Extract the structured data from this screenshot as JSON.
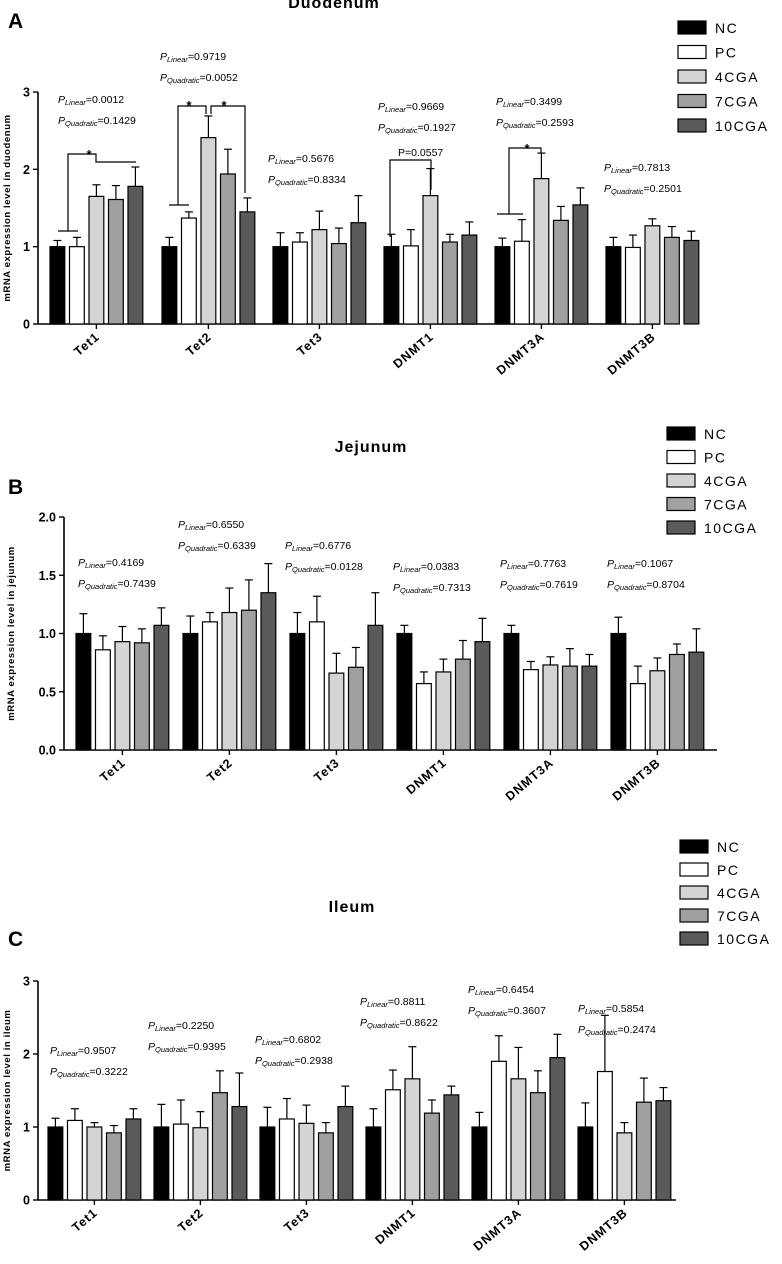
{
  "legend": {
    "groups": [
      "NC",
      "PC",
      "4CGA",
      "7CGA",
      "10CGA"
    ],
    "colors": [
      "#000000",
      "#ffffff",
      "#d4d4d4",
      "#a0a0a0",
      "#5a5a5a"
    ]
  },
  "p_labels": {
    "linear_sub": "Linear",
    "quadratic_sub": "Quadratic",
    "p": "P"
  },
  "chart_data": [
    {
      "type": "bar",
      "panel": "A",
      "title": "Duodenum",
      "ylabel": "mRNA expression level in duodenum",
      "ylim": [
        0,
        3
      ],
      "yticks": [
        "0",
        "1",
        "2",
        "3"
      ],
      "categories": [
        "Tet1",
        "Tet2",
        "Tet3",
        "DNMT1",
        "DNMT3A",
        "DNMT3B"
      ],
      "series": [
        {
          "name": "NC",
          "values": [
            1.0,
            1.0,
            1.0,
            1.0,
            1.0,
            1.0
          ],
          "errors": [
            0.08,
            0.12,
            0.18,
            0.16,
            0.11,
            0.12
          ]
        },
        {
          "name": "PC",
          "values": [
            1.0,
            1.37,
            1.06,
            1.01,
            1.07,
            0.99
          ],
          "errors": [
            0.12,
            0.08,
            0.12,
            0.21,
            0.28,
            0.16
          ]
        },
        {
          "name": "4CGA",
          "values": [
            1.65,
            2.41,
            1.22,
            1.66,
            1.88,
            1.27
          ],
          "errors": [
            0.15,
            0.28,
            0.24,
            0.35,
            0.33,
            0.09
          ]
        },
        {
          "name": "7CGA",
          "values": [
            1.61,
            1.94,
            1.04,
            1.06,
            1.34,
            1.12
          ],
          "errors": [
            0.18,
            0.32,
            0.2,
            0.1,
            0.18,
            0.14
          ]
        },
        {
          "name": "10CGA",
          "values": [
            1.78,
            1.45,
            1.31,
            1.15,
            1.54,
            1.08
          ],
          "errors": [
            0.25,
            0.18,
            0.35,
            0.17,
            0.22,
            0.12
          ]
        }
      ],
      "stats": [
        {
          "linear": "=0.0012",
          "quadratic": "=0.1429"
        },
        {
          "linear": "=0.9719",
          "quadratic": "=0.0052"
        },
        {
          "linear": "=0.5676",
          "quadratic": "=0.8334"
        },
        {
          "linear": "=0.9669",
          "quadratic": "=0.1927"
        },
        {
          "linear": "=0.3499",
          "quadratic": "=0.2593"
        },
        {
          "linear": "=0.7813",
          "quadratic": "=0.2501"
        }
      ],
      "annotations": [
        "*",
        "*",
        "*",
        "P=0.0557",
        "*"
      ]
    },
    {
      "type": "bar",
      "panel": "B",
      "title": "Jejunum",
      "ylabel": "mRNA expression level in jejunum",
      "ylim": [
        0,
        2
      ],
      "yticks": [
        "0.0",
        "0.5",
        "1.0",
        "1.5",
        "2.0"
      ],
      "categories": [
        "Tet1",
        "Tet2",
        "Tet3",
        "DNMT1",
        "DNMT3A",
        "DNMT3B"
      ],
      "series": [
        {
          "name": "NC",
          "values": [
            1.0,
            1.0,
            1.0,
            1.0,
            1.0,
            1.0
          ],
          "errors": [
            0.17,
            0.15,
            0.18,
            0.07,
            0.07,
            0.14
          ]
        },
        {
          "name": "PC",
          "values": [
            0.86,
            1.1,
            1.1,
            0.57,
            0.69,
            0.57
          ],
          "errors": [
            0.12,
            0.08,
            0.22,
            0.1,
            0.07,
            0.15
          ]
        },
        {
          "name": "4CGA",
          "values": [
            0.93,
            1.18,
            0.66,
            0.67,
            0.73,
            0.68
          ],
          "errors": [
            0.13,
            0.21,
            0.17,
            0.11,
            0.07,
            0.11
          ]
        },
        {
          "name": "7CGA",
          "values": [
            0.92,
            1.2,
            0.71,
            0.78,
            0.72,
            0.82
          ],
          "errors": [
            0.12,
            0.26,
            0.17,
            0.16,
            0.15,
            0.09
          ]
        },
        {
          "name": "10CGA",
          "values": [
            1.07,
            1.35,
            1.07,
            0.93,
            0.72,
            0.84
          ],
          "errors": [
            0.15,
            0.25,
            0.28,
            0.2,
            0.1,
            0.2
          ]
        }
      ],
      "stats": [
        {
          "linear": "=0.4169",
          "quadratic": "=0.7439"
        },
        {
          "linear": "=0.6550",
          "quadratic": "=0.6339"
        },
        {
          "linear": "=0.6776",
          "quadratic": "=0.0128"
        },
        {
          "linear": "=0.0383",
          "quadratic": "=0.7313"
        },
        {
          "linear": "=0.7763",
          "quadratic": "=0.7619"
        },
        {
          "linear": "=0.1067",
          "quadratic": "=0.8704"
        }
      ]
    },
    {
      "type": "bar",
      "panel": "C",
      "title": "Ileum",
      "ylabel": "mRNA expression level in ileum",
      "ylim": [
        0,
        3
      ],
      "yticks": [
        "0",
        "1",
        "2",
        "3"
      ],
      "categories": [
        "Tet1",
        "Tet2",
        "Tet3",
        "DNMT1",
        "DNMT3A",
        "DNMT3B"
      ],
      "series": [
        {
          "name": "NC",
          "values": [
            1.0,
            1.0,
            1.0,
            1.0,
            1.0,
            1.0
          ],
          "errors": [
            0.12,
            0.31,
            0.27,
            0.25,
            0.2,
            0.33
          ]
        },
        {
          "name": "PC",
          "values": [
            1.09,
            1.04,
            1.11,
            1.51,
            1.9,
            1.76
          ],
          "errors": [
            0.16,
            0.33,
            0.28,
            0.27,
            0.35,
            0.77
          ]
        },
        {
          "name": "4CGA",
          "values": [
            1.0,
            0.99,
            1.05,
            1.66,
            1.66,
            0.92
          ],
          "errors": [
            0.06,
            0.22,
            0.25,
            0.44,
            0.43,
            0.14
          ]
        },
        {
          "name": "7CGA",
          "values": [
            0.92,
            1.47,
            0.92,
            1.19,
            1.47,
            1.34
          ],
          "errors": [
            0.1,
            0.3,
            0.14,
            0.18,
            0.3,
            0.33
          ]
        },
        {
          "name": "10CGA",
          "values": [
            1.11,
            1.28,
            1.28,
            1.44,
            1.95,
            1.36
          ],
          "errors": [
            0.14,
            0.46,
            0.28,
            0.12,
            0.32,
            0.18
          ]
        }
      ],
      "stats": [
        {
          "linear": "=0.9507",
          "quadratic": "=0.3222"
        },
        {
          "linear": "=0.2250",
          "quadratic": "=0.9395"
        },
        {
          "linear": "=0.6802",
          "quadratic": "=0.2938"
        },
        {
          "linear": "=0.8811",
          "quadratic": "=0.8622"
        },
        {
          "linear": "=0.6454",
          "quadratic": "=0.3607"
        },
        {
          "linear": "=0.5854",
          "quadratic": "=0.2474"
        }
      ]
    }
  ]
}
